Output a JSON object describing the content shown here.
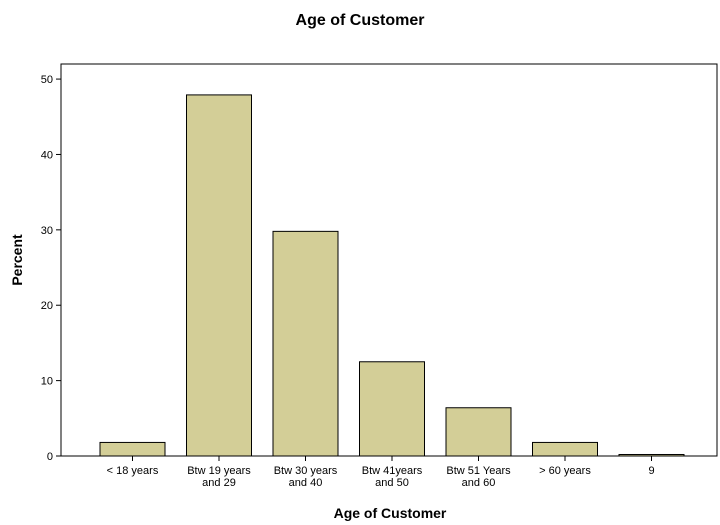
{
  "chart_data": {
    "type": "bar",
    "title": "Age of Customer",
    "xlabel": "Age of Customer",
    "ylabel": "Percent",
    "categories": [
      [
        "< 18 years"
      ],
      [
        "Btw 19 years",
        "and 29"
      ],
      [
        "Btw 30 years",
        "and 40"
      ],
      [
        "Btw 41years",
        "and 50"
      ],
      [
        "Btw 51 Years",
        "and 60"
      ],
      [
        "> 60 years"
      ],
      [
        "9"
      ]
    ],
    "values": [
      1.8,
      47.9,
      29.8,
      12.5,
      6.4,
      1.8,
      0.2
    ],
    "ylim": [
      0,
      52
    ],
    "yticks": [
      0,
      10,
      20,
      30,
      40,
      50
    ],
    "grid": false,
    "colors": {
      "bar_fill": "#d3ce97",
      "bar_stroke": "#000000",
      "axis": "#000000"
    }
  }
}
